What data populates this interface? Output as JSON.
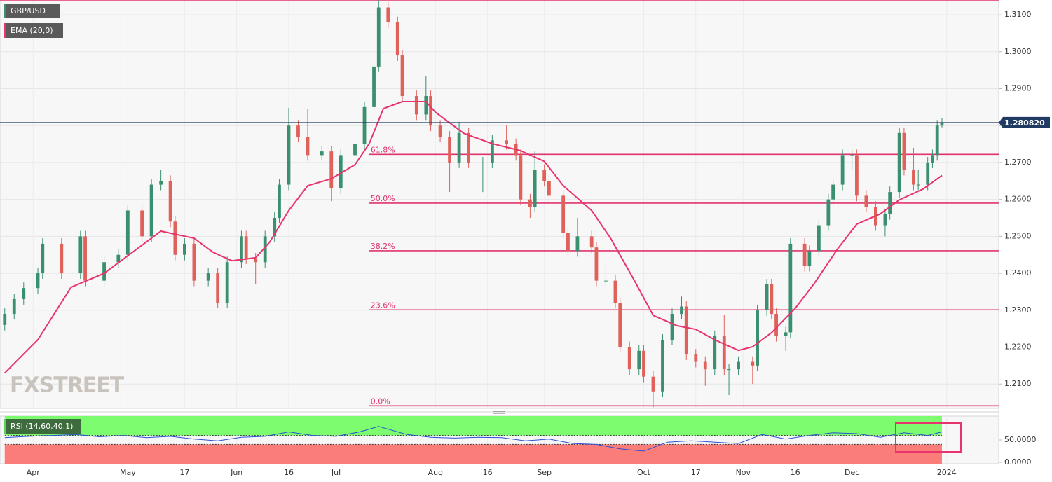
{
  "chart_data": {
    "type": "candlestick",
    "title": "GBP/USD",
    "watermark": "FXSTREET",
    "colors": {
      "up": "#3a8f6e",
      "down": "#e0605a"
    },
    "x": [
      0,
      2,
      4,
      7,
      8,
      12,
      16,
      17,
      21,
      24,
      26,
      29,
      31,
      33,
      35,
      36,
      38,
      40,
      43,
      45,
      47,
      50,
      51,
      53,
      55,
      57,
      58,
      60,
      62,
      64,
      67,
      69,
      71,
      74,
      76,
      78,
      79,
      81,
      83,
      84,
      87,
      89,
      90,
      92,
      94,
      96,
      98,
      101,
      103,
      106,
      108,
      109,
      111,
      112,
      114,
      115,
      118,
      119,
      121,
      124,
      125,
      127,
      129,
      130,
      132,
      134,
      135,
      137,
      139,
      141,
      143,
      144,
      146,
      148,
      150,
      152,
      153,
      155,
      158,
      159,
      161,
      162,
      163,
      165,
      166,
      169,
      170,
      172,
      174,
      175,
      177,
      179,
      180,
      182,
      184,
      186,
      187,
      189,
      190,
      192,
      193,
      195,
      196,
      197,
      198
    ],
    "open": [
      1.226,
      1.229,
      1.233,
      1.236,
      1.24,
      1.248,
      1.24,
      1.25,
      1.238,
      1.243,
      1.245,
      1.257,
      1.25,
      1.264,
      1.265,
      1.254,
      1.245,
      1.248,
      1.238,
      1.24,
      1.232,
      1.243,
      1.25,
      1.244,
      1.243,
      1.25,
      1.255,
      1.264,
      1.28,
      1.277,
      1.272,
      1.273,
      1.263,
      1.272,
      1.275,
      1.285,
      1.296,
      1.312,
      1.308,
      1.299,
      1.288,
      1.283,
      1.288,
      1.28,
      1.277,
      1.27,
      1.278,
      1.27,
      1.27,
      1.276,
      1.275,
      1.272,
      1.26,
      1.258,
      1.268,
      1.265,
      1.261,
      1.251,
      1.246,
      1.25,
      1.247,
      1.238,
      1.238,
      1.232,
      1.22,
      1.214,
      1.219,
      1.212,
      1.208,
      1.222,
      1.229,
      1.231,
      1.218,
      1.216,
      1.214,
      1.223,
      1.214,
      1.214,
      1.216,
      1.215,
      1.23,
      1.237,
      1.229,
      1.223,
      1.224,
      1.248,
      1.242,
      1.246,
      1.253,
      1.26,
      1.264,
      1.272,
      1.272,
      1.261,
      1.258,
      1.253,
      1.256,
      1.262,
      1.278,
      1.268,
      1.264,
      1.264,
      1.27,
      1.272,
      1.28
    ],
    "high": [
      1.2305,
      1.2345,
      1.2375,
      1.2415,
      1.2495,
      1.2495,
      1.2515,
      1.2515,
      1.2445,
      1.2465,
      1.2585,
      1.2585,
      1.2655,
      1.268,
      1.2665,
      1.2555,
      1.2495,
      1.2495,
      1.2415,
      1.2415,
      1.2445,
      1.2515,
      1.2515,
      1.2455,
      1.2515,
      1.2565,
      1.2655,
      1.2848,
      1.2815,
      1.2845,
      1.2745,
      1.2745,
      1.2735,
      1.2765,
      1.2865,
      1.2975,
      1.3143,
      1.3135,
      1.3095,
      1.3005,
      1.2895,
      1.2935,
      1.2895,
      1.2815,
      1.2785,
      1.281,
      1.2795,
      1.2715,
      1.2775,
      1.28,
      1.2765,
      1.2735,
      1.2615,
      1.273,
      1.2695,
      1.2665,
      1.2625,
      1.2525,
      1.255,
      1.2515,
      1.2485,
      1.242,
      1.2395,
      1.2335,
      1.2215,
      1.2205,
      1.2205,
      1.2135,
      1.2235,
      1.2305,
      1.2337,
      1.2325,
      1.2195,
      1.2175,
      1.2245,
      1.2287,
      1.2155,
      1.2175,
      1.2175,
      1.2315,
      1.2385,
      1.2385,
      1.2305,
      1.2255,
      1.2495,
      1.2495,
      1.2475,
      1.2545,
      1.2615,
      1.2655,
      1.2735,
      1.2735,
      1.2735,
      1.2625,
      1.2595,
      1.2575,
      1.2635,
      1.2795,
      1.2795,
      1.274,
      1.268,
      1.2715,
      1.2735,
      1.2815,
      1.282
    ],
    "low": [
      1.2245,
      1.2275,
      1.2315,
      1.2345,
      1.2385,
      1.2385,
      1.2385,
      1.2365,
      1.2365,
      1.2415,
      1.2435,
      1.2485,
      1.2485,
      1.2625,
      1.2525,
      1.2435,
      1.2435,
      1.2365,
      1.2365,
      1.2305,
      1.2305,
      1.2415,
      1.2425,
      1.237,
      1.2415,
      1.2485,
      1.2535,
      1.2625,
      1.2755,
      1.2705,
      1.2705,
      1.2595,
      1.2615,
      1.2705,
      1.2735,
      1.2835,
      1.2945,
      1.3065,
      1.2975,
      1.2865,
      1.2815,
      1.2815,
      1.2785,
      1.2755,
      1.262,
      1.2685,
      1.2685,
      1.262,
      1.2685,
      1.2735,
      1.2705,
      1.2585,
      1.255,
      1.2565,
      1.2635,
      1.2595,
      1.2495,
      1.2445,
      1.2445,
      1.2455,
      1.2365,
      1.2365,
      1.2305,
      1.2185,
      1.2125,
      1.2125,
      1.2105,
      1.2037,
      1.2065,
      1.2205,
      1.2275,
      1.2165,
      1.2145,
      1.2095,
      1.2125,
      1.2125,
      1.207,
      1.2125,
      1.21,
      1.2135,
      1.2285,
      1.2275,
      1.2215,
      1.219,
      1.2225,
      1.2405,
      1.2405,
      1.2445,
      1.2515,
      1.2585,
      1.2625,
      1.268,
      1.2595,
      1.2565,
      1.2515,
      1.25,
      1.2545,
      1.2605,
      1.2665,
      1.2625,
      1.2625,
      1.2625,
      1.2685,
      1.2705,
      1.2795
    ],
    "close": [
      1.229,
      1.233,
      1.236,
      1.24,
      1.248,
      1.24,
      1.25,
      1.238,
      1.243,
      1.245,
      1.257,
      1.25,
      1.264,
      1.265,
      1.254,
      1.245,
      1.248,
      1.238,
      1.24,
      1.232,
      1.243,
      1.25,
      1.244,
      1.243,
      1.25,
      1.255,
      1.264,
      1.28,
      1.277,
      1.272,
      1.273,
      1.263,
      1.272,
      1.275,
      1.285,
      1.296,
      1.312,
      1.308,
      1.299,
      1.288,
      1.283,
      1.288,
      1.28,
      1.277,
      1.27,
      1.278,
      1.27,
      1.27,
      1.276,
      1.275,
      1.272,
      1.26,
      1.258,
      1.268,
      1.265,
      1.261,
      1.251,
      1.246,
      1.25,
      1.247,
      1.238,
      1.238,
      1.232,
      1.22,
      1.214,
      1.219,
      1.212,
      1.208,
      1.222,
      1.229,
      1.231,
      1.218,
      1.216,
      1.214,
      1.223,
      1.214,
      1.214,
      1.216,
      1.215,
      1.23,
      1.237,
      1.229,
      1.223,
      1.224,
      1.248,
      1.242,
      1.246,
      1.253,
      1.26,
      1.264,
      1.272,
      1.272,
      1.261,
      1.258,
      1.253,
      1.256,
      1.262,
      1.278,
      1.268,
      1.264,
      1.264,
      1.27,
      1.272,
      1.28,
      1.2808
    ],
    "xlim": [
      -1,
      210
    ],
    "xticks": [
      {
        "value": 6,
        "label": "Apr"
      },
      {
        "value": 26,
        "label": "May"
      },
      {
        "value": 38,
        "label": "17"
      },
      {
        "value": 49,
        "label": "Jun"
      },
      {
        "value": 60,
        "label": "16"
      },
      {
        "value": 70,
        "label": "Jul"
      },
      {
        "value": 91,
        "label": "Aug"
      },
      {
        "value": 102,
        "label": "16"
      },
      {
        "value": 114,
        "label": "Sep"
      },
      {
        "value": 135,
        "label": "Oct"
      },
      {
        "value": 146,
        "label": "17"
      },
      {
        "value": 156,
        "label": "Nov"
      },
      {
        "value": 167,
        "label": "16"
      },
      {
        "value": 179,
        "label": "Dec"
      },
      {
        "value": 199,
        "label": "2024"
      }
    ],
    "ylim": [
      1.2034,
      1.314
    ],
    "yticks": [
      {
        "value": 1.21,
        "label": "1.2100"
      },
      {
        "value": 1.22,
        "label": "1.2200"
      },
      {
        "value": 1.23,
        "label": "1.2300"
      },
      {
        "value": 1.24,
        "label": "1.2400"
      },
      {
        "value": 1.25,
        "label": "1.2500"
      },
      {
        "value": 1.26,
        "label": "1.2600"
      },
      {
        "value": 1.27,
        "label": "1.2700"
      },
      {
        "value": 1.28,
        "label": "1.2800"
      },
      {
        "value": 1.29,
        "label": "1.2900"
      },
      {
        "value": 1.3,
        "label": "1.3000"
      },
      {
        "value": 1.31,
        "label": "1.3100"
      }
    ],
    "grid": true,
    "last_price": {
      "value": 1.28082,
      "label": "1.280820",
      "color": "#1f3b63"
    },
    "ema": {
      "name": "EMA (20,0)",
      "color": "#e8336d",
      "x": [
        0,
        7,
        14,
        21,
        27,
        33,
        40,
        44,
        48,
        53,
        56,
        60,
        64,
        69,
        74,
        77,
        80,
        84,
        89,
        91,
        97,
        103,
        109,
        114,
        118,
        124,
        128,
        133,
        137,
        142,
        146,
        150,
        155,
        158,
        162,
        167,
        171,
        176,
        180,
        185,
        189,
        194,
        198
      ],
      "values": [
        1.213,
        1.222,
        1.2362,
        1.24,
        1.2457,
        1.2514,
        1.2495,
        1.2457,
        1.2434,
        1.2442,
        1.2485,
        1.257,
        1.2637,
        1.2656,
        1.2694,
        1.2751,
        1.2846,
        1.2865,
        1.2865,
        1.2836,
        1.2779,
        1.2751,
        1.2732,
        1.2703,
        1.2637,
        1.257,
        1.2495,
        1.2381,
        1.2286,
        1.2258,
        1.2248,
        1.222,
        1.2191,
        1.2201,
        1.2239,
        1.2305,
        1.2372,
        1.2467,
        1.2533,
        1.2561,
        1.2599,
        1.2628,
        1.2665
      ]
    },
    "levels_color": "#e0336d",
    "levels": [
      {
        "value": 1.314
      },
      {
        "label": "61.8%",
        "value": 1.2722,
        "x_start": 77
      },
      {
        "label": "50.0%",
        "value": 1.259,
        "x_start": 77
      },
      {
        "label": "38.2%",
        "value": 1.2461,
        "x_start": 77
      },
      {
        "label": "23.6%",
        "value": 1.2301,
        "x_start": 77
      },
      {
        "label": "0.0%",
        "value": 1.2041,
        "x_start": 77
      }
    ],
    "rsi": {
      "name": "RSI (14,60,40,1)",
      "color": "#2b4fd6",
      "x": [
        0,
        5,
        10,
        15,
        20,
        25,
        30,
        35,
        40,
        45,
        50,
        55,
        60,
        65,
        70,
        75,
        79,
        85,
        90,
        95,
        100,
        105,
        110,
        115,
        120,
        125,
        130,
        135,
        140,
        145,
        150,
        155,
        160,
        165,
        170,
        175,
        180,
        185,
        190,
        195,
        198
      ],
      "values": [
        55,
        58,
        60,
        62,
        57,
        60,
        55,
        58,
        52,
        48,
        56,
        58,
        68,
        60,
        58,
        68,
        80,
        62,
        56,
        54,
        56,
        55,
        48,
        52,
        42,
        40,
        30,
        25,
        45,
        48,
        45,
        42,
        62,
        52,
        60,
        66,
        64,
        56,
        66,
        60,
        68
      ],
      "ylim": [
        -3,
        103
      ],
      "yticks": [
        {
          "value": 50,
          "label": "50.0000"
        },
        {
          "value": 0,
          "label": "0.0000"
        }
      ],
      "upper": 60,
      "lower": 40,
      "upper_color": "#7cfc6e",
      "lower_color": "#fb7d7a"
    }
  }
}
